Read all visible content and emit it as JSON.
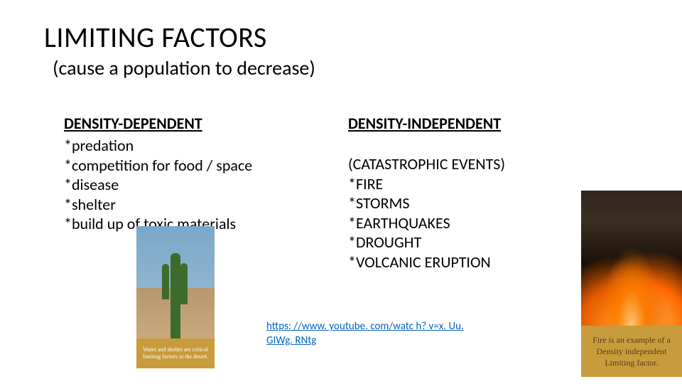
{
  "title": "LIMITING FACTORS",
  "subtitle": "(cause a population to decrease)",
  "left": {
    "heading": "DENSITY-DEPENDENT",
    "items": [
      "*predation",
      "*competition for food / space",
      "*disease",
      "*shelter",
      "*build up of toxic materials"
    ]
  },
  "right": {
    "heading": "DENSITY-INDEPENDENT",
    "subheading": "(CATASTROPHIC EVENTS)",
    "items": [
      "*FIRE",
      "*STORMS",
      "*EARTHQUAKES",
      "*DROUGHT",
      "*VOLCANIC ERUPTION"
    ]
  },
  "link": "https: //www. youtube. com/watc h? v=x. Uu. GIWg. RNtg",
  "cactus_caption": "Water and shelter are critical limiting factors in the desert.",
  "fire_caption": "Fire is an example of a Density independent Limiting factor.",
  "colors": {
    "text": "#000000",
    "link": "#0563c1",
    "caption_bg": "#c89b3c",
    "sky": "#7aa8c9",
    "desert": "#c9a97d",
    "cactus": "#3d6b2e",
    "fire_dark": "#1a0f06",
    "flame_a": "#ff8c1a",
    "flame_b": "#ffd480"
  },
  "typography": {
    "title_size": 40,
    "subtitle_size": 28,
    "body_size": 22,
    "link_size": 15,
    "caption_serif": "Georgia"
  }
}
